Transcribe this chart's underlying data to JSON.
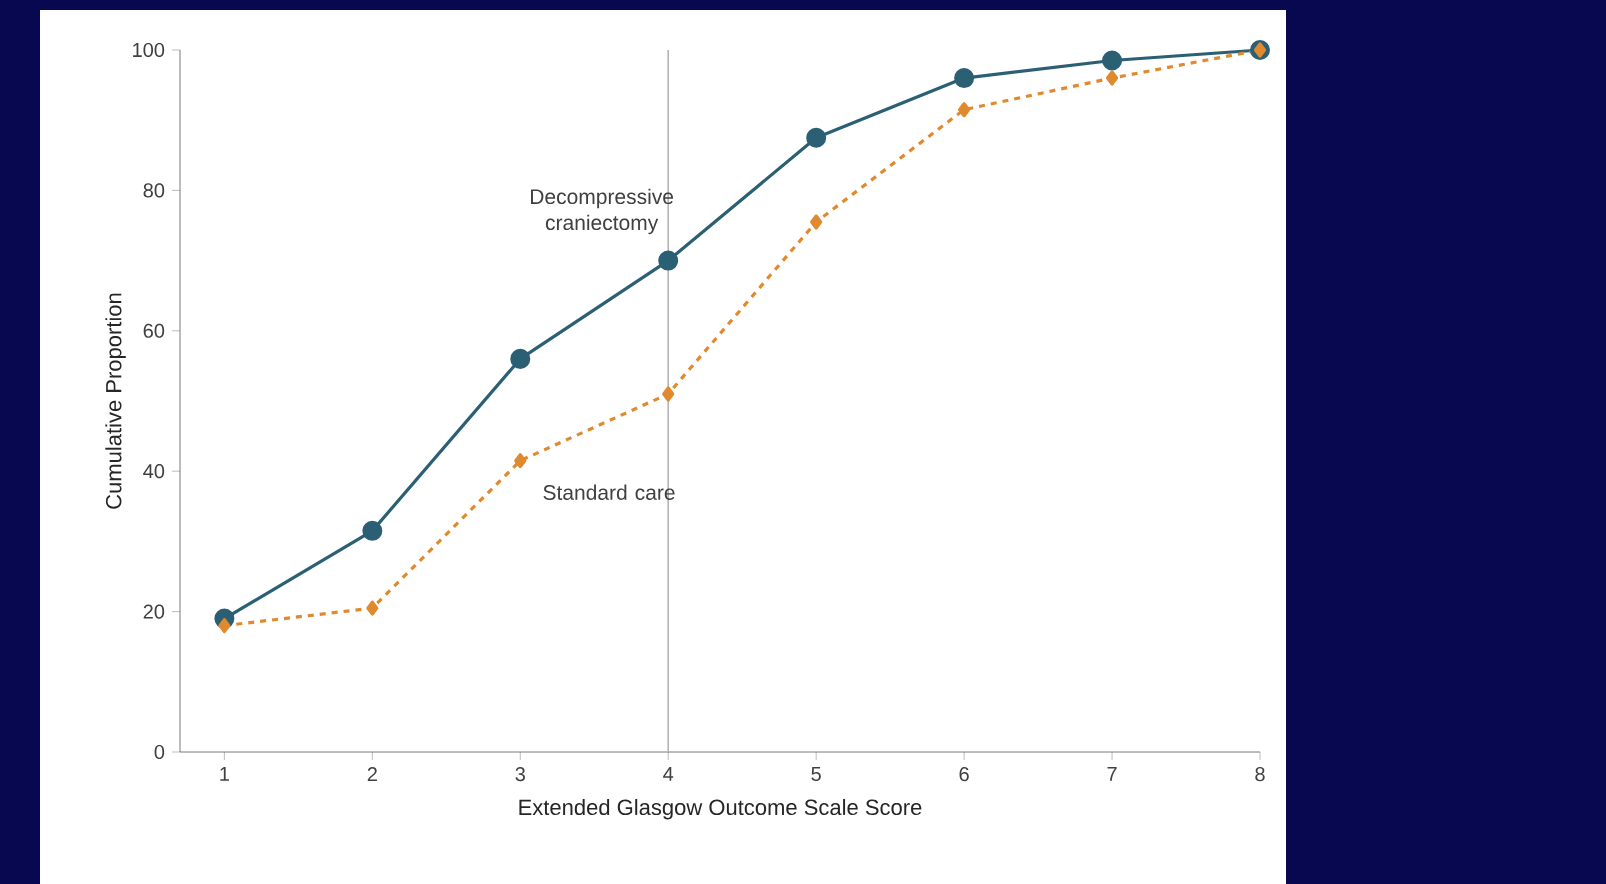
{
  "chart_data": {
    "type": "line",
    "xlabel": "Extended Glasgow Outcome Scale Score",
    "ylabel": "Cumulative Proportion",
    "x": [
      1,
      2,
      3,
      4,
      5,
      6,
      7,
      8
    ],
    "series": [
      {
        "name": "Decompressive craniectomy",
        "color": "#2b5f73",
        "values": [
          19,
          31.5,
          56,
          70,
          87.5,
          96,
          98.5,
          100
        ],
        "marker": "circle",
        "line_style": "solid"
      },
      {
        "name": "Standard care",
        "color": "#e0892e",
        "values": [
          18,
          20.5,
          41.5,
          51,
          75.5,
          91.5,
          96,
          100
        ],
        "marker": "diamond",
        "line_style": "dashed"
      }
    ],
    "xlim": [
      0.7,
      8
    ],
    "xticks": [
      1,
      2,
      3,
      4,
      5,
      6,
      7,
      8
    ],
    "ylim": [
      0,
      100
    ],
    "yticks": [
      0,
      20,
      40,
      60,
      80,
      100
    ],
    "ref_lines": [
      {
        "axis": "x",
        "value": 4,
        "color": "#b4b4b4"
      }
    ],
    "grid": false,
    "legend": false
  }
}
